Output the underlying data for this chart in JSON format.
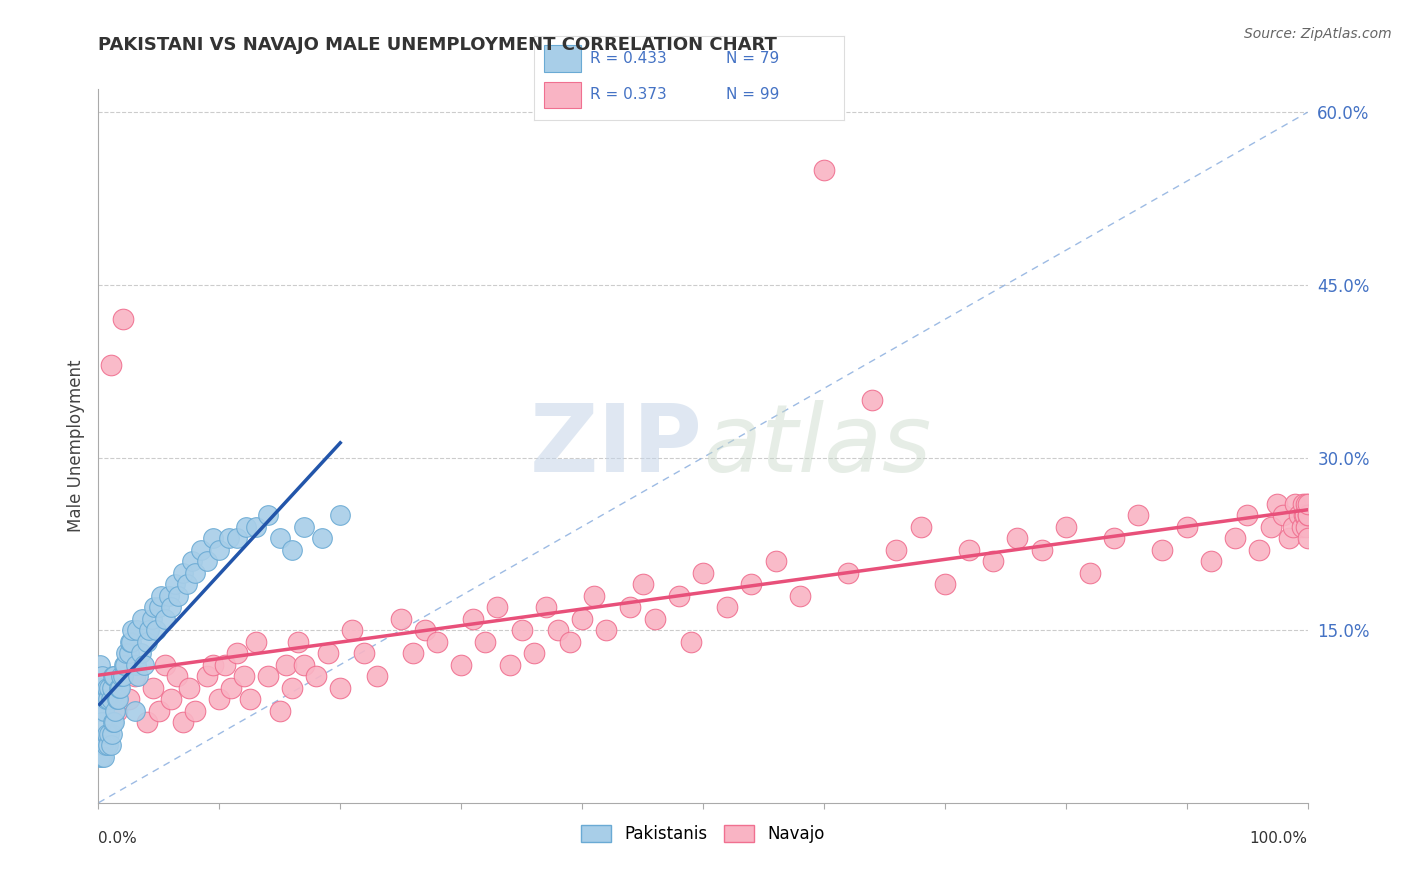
{
  "title": "PAKISTANI VS NAVAJO MALE UNEMPLOYMENT CORRELATION CHART",
  "source": "Source: ZipAtlas.com",
  "ylabel": "Male Unemployment",
  "right_yticklabels": [
    "",
    "15.0%",
    "30.0%",
    "45.0%",
    "60.0%"
  ],
  "right_ytick_vals": [
    0.0,
    0.15,
    0.3,
    0.45,
    0.6
  ],
  "legend_r1": "R = 0.433",
  "legend_n1": "N = 79",
  "legend_r2": "R = 0.373",
  "legend_n2": "N = 99",
  "pakistani_color": "#A8CEE8",
  "navajo_color": "#F9B4C4",
  "pakistani_edge": "#6aaad4",
  "navajo_edge": "#f07090",
  "trend_pakistani_color": "#2255AA",
  "trend_navajo_color": "#E8507A",
  "dash_line_color": "#85AADD",
  "background": "#FFFFFF",
  "xlim": [
    0.0,
    1.0
  ],
  "ylim": [
    0.0,
    0.62
  ],
  "pakistani_x": [
    0.001,
    0.001,
    0.001,
    0.002,
    0.002,
    0.003,
    0.003,
    0.003,
    0.004,
    0.004,
    0.005,
    0.005,
    0.006,
    0.006,
    0.007,
    0.007,
    0.008,
    0.008,
    0.009,
    0.009,
    0.01,
    0.01,
    0.011,
    0.011,
    0.012,
    0.012,
    0.013,
    0.013,
    0.014,
    0.015,
    0.016,
    0.017,
    0.018,
    0.019,
    0.02,
    0.021,
    0.022,
    0.023,
    0.025,
    0.026,
    0.027,
    0.028,
    0.03,
    0.031,
    0.032,
    0.033,
    0.035,
    0.036,
    0.038,
    0.04,
    0.042,
    0.044,
    0.046,
    0.048,
    0.05,
    0.052,
    0.055,
    0.058,
    0.06,
    0.063,
    0.066,
    0.07,
    0.073,
    0.077,
    0.08,
    0.085,
    0.09,
    0.095,
    0.1,
    0.108,
    0.115,
    0.122,
    0.13,
    0.14,
    0.15,
    0.16,
    0.17,
    0.185,
    0.2
  ],
  "pakistani_y": [
    0.04,
    0.08,
    0.12,
    0.05,
    0.1,
    0.04,
    0.07,
    0.11,
    0.05,
    0.09,
    0.04,
    0.08,
    0.05,
    0.09,
    0.06,
    0.1,
    0.05,
    0.09,
    0.06,
    0.1,
    0.05,
    0.09,
    0.06,
    0.1,
    0.07,
    0.11,
    0.07,
    0.11,
    0.08,
    0.09,
    0.09,
    0.1,
    0.1,
    0.11,
    0.11,
    0.12,
    0.12,
    0.13,
    0.13,
    0.14,
    0.14,
    0.15,
    0.08,
    0.12,
    0.15,
    0.11,
    0.13,
    0.16,
    0.12,
    0.14,
    0.15,
    0.16,
    0.17,
    0.15,
    0.17,
    0.18,
    0.16,
    0.18,
    0.17,
    0.19,
    0.18,
    0.2,
    0.19,
    0.21,
    0.2,
    0.22,
    0.21,
    0.23,
    0.22,
    0.23,
    0.23,
    0.24,
    0.24,
    0.25,
    0.23,
    0.22,
    0.24,
    0.23,
    0.25
  ],
  "navajo_x": [
    0.01,
    0.015,
    0.02,
    0.025,
    0.03,
    0.04,
    0.045,
    0.05,
    0.055,
    0.06,
    0.065,
    0.07,
    0.075,
    0.08,
    0.09,
    0.095,
    0.1,
    0.105,
    0.11,
    0.115,
    0.12,
    0.125,
    0.13,
    0.14,
    0.15,
    0.155,
    0.16,
    0.165,
    0.17,
    0.18,
    0.19,
    0.2,
    0.21,
    0.22,
    0.23,
    0.25,
    0.26,
    0.27,
    0.28,
    0.3,
    0.31,
    0.32,
    0.33,
    0.34,
    0.35,
    0.36,
    0.37,
    0.38,
    0.39,
    0.4,
    0.41,
    0.42,
    0.44,
    0.45,
    0.46,
    0.48,
    0.49,
    0.5,
    0.52,
    0.54,
    0.56,
    0.58,
    0.6,
    0.62,
    0.64,
    0.66,
    0.68,
    0.7,
    0.72,
    0.74,
    0.76,
    0.78,
    0.8,
    0.82,
    0.84,
    0.86,
    0.88,
    0.9,
    0.92,
    0.94,
    0.95,
    0.96,
    0.97,
    0.975,
    0.98,
    0.985,
    0.988,
    0.99,
    0.993,
    0.995,
    0.996,
    0.997,
    0.998,
    0.999,
    0.999,
    1.0,
    1.0,
    1.0,
    1.0
  ],
  "navajo_y": [
    0.38,
    0.08,
    0.42,
    0.09,
    0.11,
    0.07,
    0.1,
    0.08,
    0.12,
    0.09,
    0.11,
    0.07,
    0.1,
    0.08,
    0.11,
    0.12,
    0.09,
    0.12,
    0.1,
    0.13,
    0.11,
    0.09,
    0.14,
    0.11,
    0.08,
    0.12,
    0.1,
    0.14,
    0.12,
    0.11,
    0.13,
    0.1,
    0.15,
    0.13,
    0.11,
    0.16,
    0.13,
    0.15,
    0.14,
    0.12,
    0.16,
    0.14,
    0.17,
    0.12,
    0.15,
    0.13,
    0.17,
    0.15,
    0.14,
    0.16,
    0.18,
    0.15,
    0.17,
    0.19,
    0.16,
    0.18,
    0.14,
    0.2,
    0.17,
    0.19,
    0.21,
    0.18,
    0.55,
    0.2,
    0.35,
    0.22,
    0.24,
    0.19,
    0.22,
    0.21,
    0.23,
    0.22,
    0.24,
    0.2,
    0.23,
    0.25,
    0.22,
    0.24,
    0.21,
    0.23,
    0.25,
    0.22,
    0.24,
    0.26,
    0.25,
    0.23,
    0.24,
    0.26,
    0.25,
    0.24,
    0.26,
    0.25,
    0.25,
    0.24,
    0.26,
    0.25,
    0.23,
    0.25,
    0.26
  ]
}
